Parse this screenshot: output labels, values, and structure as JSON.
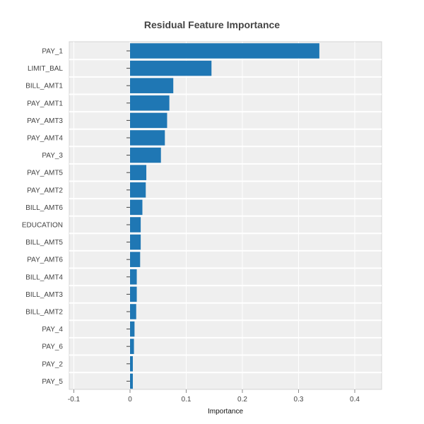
{
  "chart_data": {
    "type": "bar",
    "orientation": "horizontal",
    "title": "Residual Feature Importance",
    "xlabel": "Importance",
    "ylabel": "",
    "xlim": [
      -0.1,
      0.45
    ],
    "x_ticks": [
      -0.1,
      0,
      0.1,
      0.2,
      0.3,
      0.4
    ],
    "x_tick_labels": [
      "-0.1",
      "0",
      "0.1",
      "0.2",
      "0.3",
      "0.4"
    ],
    "grid": true,
    "bar_color": "#1f77b4",
    "plot_background": "#efefef",
    "categories": [
      "PAY_1",
      "LIMIT_BAL",
      "BILL_AMT1",
      "PAY_AMT1",
      "PAY_AMT3",
      "PAY_AMT4",
      "PAY_3",
      "PAY_AMT5",
      "PAY_AMT2",
      "BILL_AMT6",
      "EDUCATION",
      "BILL_AMT5",
      "PAY_AMT6",
      "BILL_AMT4",
      "BILL_AMT3",
      "BILL_AMT2",
      "PAY_4",
      "PAY_6",
      "PAY_2",
      "PAY_5"
    ],
    "values": [
      0.337,
      0.145,
      0.077,
      0.07,
      0.066,
      0.062,
      0.055,
      0.029,
      0.028,
      0.022,
      0.019,
      0.019,
      0.018,
      0.012,
      0.012,
      0.011,
      0.008,
      0.007,
      0.005,
      0.005
    ]
  }
}
